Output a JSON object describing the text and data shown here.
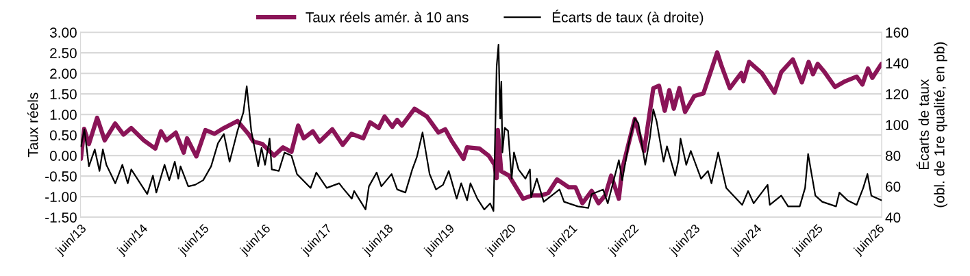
{
  "chart_data": {
    "type": "line",
    "ylabel": "Taux réels",
    "y2label": "Écarts de taux\n(obl. de 1re qualité, en pb)",
    "legend": "top",
    "grid": "y",
    "line_style": "solid",
    "marker": "none",
    "xlim": [
      "2013-06-01",
      "2026-06-20"
    ],
    "xticks": [
      {
        "value": "2013-06-01",
        "label": "juin/13"
      },
      {
        "value": "2014-06-01",
        "label": "juin/14"
      },
      {
        "value": "2015-06-01",
        "label": "juin/15"
      },
      {
        "value": "2016-06-01",
        "label": "juin/16"
      },
      {
        "value": "2017-06-01",
        "label": "juin/17"
      },
      {
        "value": "2018-06-01",
        "label": "juin/18"
      },
      {
        "value": "2019-06-01",
        "label": "juin/19"
      },
      {
        "value": "2020-06-01",
        "label": "juin/20"
      },
      {
        "value": "2021-06-01",
        "label": "juin/21"
      },
      {
        "value": "2022-06-01",
        "label": "juin/22"
      },
      {
        "value": "2023-06-01",
        "label": "juin/23"
      },
      {
        "value": "2024-06-01",
        "label": "juin/24"
      },
      {
        "value": "2025-06-01",
        "label": "juin/25"
      },
      {
        "value": "2026-06-01",
        "label": "juin/26"
      }
    ],
    "ylim": [
      -1.5,
      3.0
    ],
    "yticks": [
      {
        "value": -1.5,
        "label": "-1.50"
      },
      {
        "value": -1.0,
        "label": "-1.00"
      },
      {
        "value": -0.5,
        "label": "-0.50"
      },
      {
        "value": 0,
        "label": "0.00"
      },
      {
        "value": 0.5,
        "label": "0.50"
      },
      {
        "value": 1.0,
        "label": "1.00"
      },
      {
        "value": 1.5,
        "label": "1.50"
      },
      {
        "value": 2.0,
        "label": "2.00"
      },
      {
        "value": 2.5,
        "label": "2.50"
      },
      {
        "value": 3.0,
        "label": "3.00"
      }
    ],
    "y2lim": [
      40,
      160
    ],
    "y2ticks": [
      40,
      60,
      80,
      100,
      120,
      140,
      160
    ],
    "series": [
      {
        "name": "Taux réels amér. à 10 ans",
        "color": "#8a1457",
        "x": [
          "2013-06-03",
          "2013-06-23",
          "2013-07-21",
          "2013-09-08",
          "2013-10-23",
          "2013-12-24",
          "2014-02-12",
          "2014-03-30",
          "2014-06-13",
          "2014-08-20",
          "2014-09-23",
          "2014-10-25",
          "2014-12-20",
          "2015-02-05",
          "2015-02-25",
          "2015-04-21",
          "2015-06-14",
          "2015-08-07",
          "2015-10-02",
          "2015-12-22",
          "2016-02-28",
          "2016-03-26",
          "2016-05-18",
          "2016-07-27",
          "2016-09-18",
          "2016-11-07",
          "2016-12-17",
          "2017-01-19",
          "2017-03-14",
          "2017-04-24",
          "2017-07-08",
          "2017-09-08",
          "2017-10-30",
          "2018-01-08",
          "2018-02-18",
          "2018-04-10",
          "2018-05-15",
          "2018-06-30",
          "2018-07-29",
          "2018-08-26",
          "2018-11-09",
          "2019-01-22",
          "2019-04-01",
          "2019-05-11",
          "2019-06-21",
          "2019-08-28",
          "2019-09-18",
          "2019-12-01",
          "2020-01-24",
          "2020-02-28",
          "2020-03-12",
          "2020-03-19",
          "2020-04-08",
          "2020-05-25",
          "2020-08-16",
          "2020-10-10",
          "2020-12-03",
          "2021-01-13",
          "2021-03-06",
          "2021-05-14",
          "2021-06-24",
          "2021-08-04",
          "2021-09-28",
          "2021-11-08",
          "2021-12-18",
          "2022-01-22",
          "2022-03-09",
          "2022-03-29",
          "2022-05-09",
          "2022-06-12",
          "2022-08-06",
          "2022-09-30",
          "2022-11-03",
          "2022-12-07",
          "2023-01-03",
          "2023-01-30",
          "2023-03-04",
          "2023-04-07",
          "2023-06-01",
          "2023-07-25",
          "2023-09-04",
          "2023-10-15",
          "2023-11-11",
          "2023-12-29",
          "2024-03-06",
          "2024-03-19",
          "2024-04-22",
          "2024-07-06",
          "2024-09-20",
          "2024-10-30",
          "2025-01-07",
          "2025-03-02",
          "2025-04-11",
          "2025-05-07",
          "2025-06-04",
          "2025-07-15",
          "2025-09-15",
          "2025-11-15",
          "2026-01-22",
          "2026-02-25",
          "2026-03-30",
          "2026-04-25",
          "2026-06-18"
        ],
        "values": [
          -0.08,
          0.65,
          0.28,
          0.92,
          0.37,
          0.78,
          0.51,
          0.67,
          0.37,
          0.17,
          0.59,
          0.37,
          0.56,
          0.07,
          0.42,
          -0.02,
          0.62,
          0.53,
          0.67,
          0.84,
          0.51,
          0.34,
          0.28,
          0.0,
          0.2,
          0.09,
          0.73,
          0.42,
          0.59,
          0.34,
          0.64,
          0.26,
          0.53,
          0.42,
          0.81,
          0.67,
          0.95,
          0.7,
          0.87,
          0.73,
          1.14,
          0.95,
          0.56,
          0.64,
          0.34,
          -0.08,
          0.2,
          0.17,
          0.0,
          -0.22,
          -0.55,
          0.62,
          -0.38,
          -0.49,
          -1.05,
          -0.97,
          -0.97,
          -0.91,
          -0.58,
          -0.77,
          -0.77,
          -1.16,
          -0.86,
          -1.16,
          -0.97,
          -0.49,
          -1.05,
          -0.33,
          0.34,
          0.89,
          0.11,
          1.64,
          1.7,
          1.09,
          1.59,
          1.14,
          1.64,
          1.06,
          1.45,
          1.51,
          2.01,
          2.51,
          2.17,
          1.64,
          2.01,
          1.81,
          2.28,
          2.01,
          1.53,
          2.03,
          2.34,
          1.78,
          2.28,
          1.98,
          2.23,
          2.03,
          1.67,
          1.81,
          1.92,
          1.73,
          2.12,
          1.89,
          2.23
        ]
      },
      {
        "name": "Écarts de taux (à droite)",
        "color": "#000000",
        "axis": "y2",
        "x": [
          "2013-06-04",
          "2013-06-24",
          "2013-07-21",
          "2013-08-25",
          "2013-09-22",
          "2013-10-12",
          "2013-11-02",
          "2013-12-25",
          "2014-02-05",
          "2014-03-09",
          "2014-03-30",
          "2014-07-03",
          "2014-08-06",
          "2014-08-26",
          "2014-10-14",
          "2014-11-11",
          "2014-12-14",
          "2015-01-04",
          "2015-01-17",
          "2015-03-04",
          "2015-04-14",
          "2015-06-01",
          "2015-07-18",
          "2015-08-28",
          "2015-10-02",
          "2015-11-05",
          "2015-12-22",
          "2016-01-26",
          "2016-02-15",
          "2016-03-13",
          "2016-04-23",
          "2016-05-13",
          "2016-06-03",
          "2016-06-30",
          "2016-07-13",
          "2016-08-24",
          "2016-09-27",
          "2016-11-07",
          "2016-12-10",
          "2017-03-01",
          "2017-04-04",
          "2017-06-05",
          "2017-08-18",
          "2017-09-08",
          "2017-11-01",
          "2017-11-15",
          "2018-01-22",
          "2018-02-11",
          "2018-03-29",
          "2018-04-26",
          "2018-06-26",
          "2018-07-29",
          "2018-09-16",
          "2018-10-27",
          "2018-11-23",
          "2018-12-27",
          "2019-02-07",
          "2019-03-17",
          "2019-04-28",
          "2019-06-01",
          "2019-07-18",
          "2019-08-14",
          "2019-09-18",
          "2019-10-08",
          "2019-11-18",
          "2019-12-29",
          "2020-02-02",
          "2020-02-22",
          "2020-03-12",
          "2020-03-23",
          "2020-04-02",
          "2020-04-09",
          "2020-04-15",
          "2020-04-29",
          "2020-05-19",
          "2020-06-09",
          "2020-06-23",
          "2020-07-20",
          "2020-08-30",
          "2020-09-26",
          "2020-10-03",
          "2020-11-06",
          "2020-12-17",
          "2021-03-21",
          "2021-04-17",
          "2021-07-08",
          "2021-09-08",
          "2021-09-28",
          "2021-12-05",
          "2022-01-02",
          "2022-03-09",
          "2022-03-29",
          "2022-05-09",
          "2022-06-12",
          "2022-07-03",
          "2022-08-13",
          "2022-09-09",
          "2022-09-30",
          "2022-10-20",
          "2022-11-30",
          "2022-12-20",
          "2023-02-07",
          "2023-02-27",
          "2023-03-11",
          "2023-04-14",
          "2023-05-11",
          "2023-07-11",
          "2023-08-21",
          "2023-09-11",
          "2023-10-21",
          "2023-12-08",
          "2024-03-12",
          "2024-04-16",
          "2024-05-19",
          "2024-08-10",
          "2024-08-23",
          "2024-10-30",
          "2024-12-10",
          "2025-02-17",
          "2025-03-21",
          "2025-04-08",
          "2025-05-21",
          "2025-07-01",
          "2025-09-21",
          "2025-10-11",
          "2025-11-28",
          "2026-01-22",
          "2026-03-02",
          "2026-03-27",
          "2026-04-19",
          "2026-06-19"
        ],
        "values": [
          86,
          97,
          73,
          84,
          70,
          84,
          74,
          62,
          74,
          62,
          71,
          55,
          67,
          56,
          74,
          64,
          76,
          65,
          73,
          60,
          61,
          64,
          73,
          88,
          94,
          76,
          96,
          108,
          125,
          96,
          73,
          85,
          74,
          91,
          71,
          70,
          82,
          80,
          68,
          59,
          69,
          59,
          62,
          59,
          52,
          57,
          45,
          60,
          69,
          60,
          68,
          58,
          56,
          71,
          79,
          95,
          68,
          58,
          61,
          70,
          52,
          62,
          51,
          62,
          52,
          45,
          49,
          44,
          138,
          152,
          104,
          128,
          82,
          98,
          96,
          65,
          82,
          71,
          65,
          71,
          53,
          65,
          50,
          58,
          50,
          47,
          46,
          55,
          58,
          49,
          77,
          64,
          89,
          104,
          101,
          74,
          91,
          110,
          102,
          76,
          86,
          67,
          77,
          91,
          74,
          83,
          65,
          70,
          62,
          82,
          59,
          48,
          57,
          49,
          61,
          48,
          54,
          47,
          47,
          59,
          81,
          54,
          50,
          47,
          56,
          51,
          48,
          59,
          68,
          54,
          51
        ]
      }
    ]
  }
}
